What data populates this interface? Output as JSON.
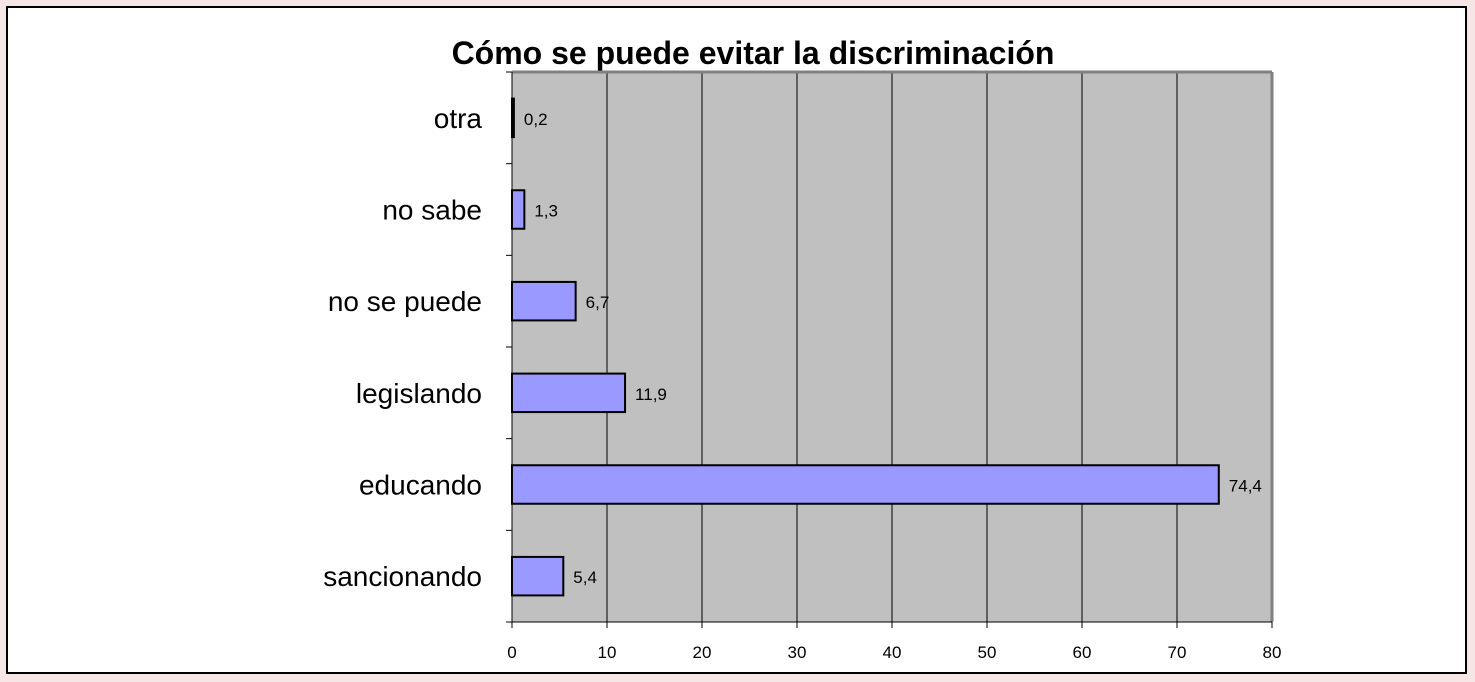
{
  "chart_data": {
    "type": "bar",
    "orientation": "horizontal",
    "title": "Cómo se puede evitar la discriminación",
    "categories": [
      "sancionando",
      "educando",
      "legislando",
      "no se puede",
      "no sabe",
      "otra"
    ],
    "values": [
      5.4,
      74.4,
      11.9,
      6.7,
      1.3,
      0.2
    ],
    "data_labels": [
      "5,4",
      "74,4",
      "11,9",
      "6,7",
      "1,3",
      "0,2"
    ],
    "xlim": [
      0,
      80
    ],
    "xticks": [
      0,
      10,
      20,
      30,
      40,
      50,
      60,
      70,
      80
    ],
    "xlabel": "",
    "ylabel": "",
    "grid": "vertical",
    "legend": "none",
    "colors": {
      "bar_fill": "#9999ff",
      "bar_stroke": "#000000",
      "plot_background": "#c0c0c0",
      "gridline": "#000000",
      "frame_background": "#ffffff",
      "page_background": "#f7e6e6"
    }
  }
}
